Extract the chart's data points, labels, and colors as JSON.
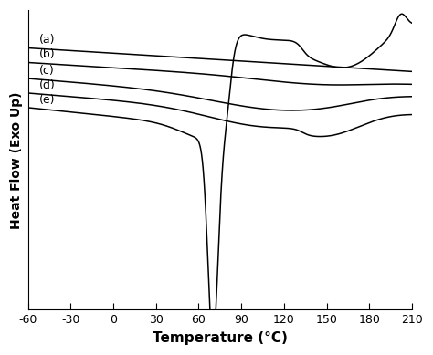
{
  "title": "",
  "xlabel": "Temperature (°C)",
  "ylabel": "Heat Flow (Exo Up)",
  "xlim": [
    -60,
    210
  ],
  "xticks": [
    -60,
    -30,
    0,
    30,
    60,
    90,
    120,
    150,
    180,
    210
  ],
  "background_color": "#ffffff",
  "curve_color": "#000000",
  "labels": [
    "(a)",
    "(b)",
    "(c)",
    "(d)",
    "(e)"
  ],
  "label_fontsize": 9
}
